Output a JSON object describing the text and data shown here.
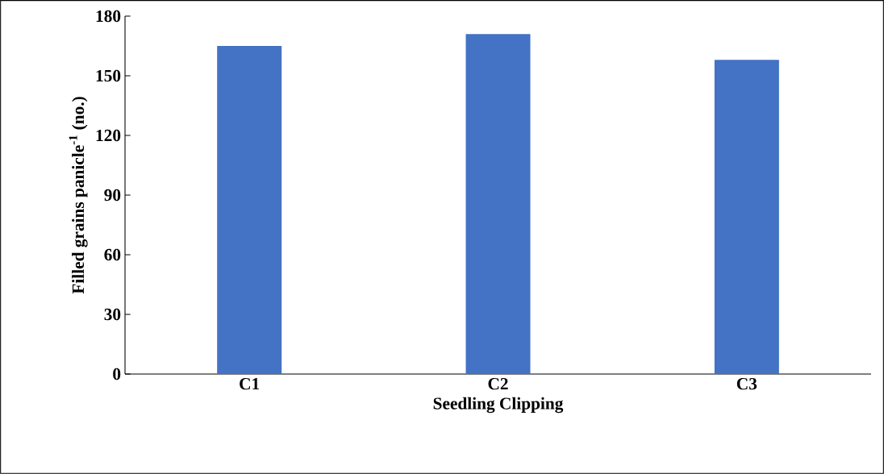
{
  "chart_data": {
    "type": "bar",
    "categories": [
      "C1",
      "C2",
      "C3"
    ],
    "values": [
      165,
      171,
      158
    ],
    "color": "#4472c4",
    "xlabel": "Seedling Clipping",
    "ylabel": "Filled grains panicle$^{-1}$ (no.)",
    "ylim": [
      0,
      180
    ],
    "yticks": [
      0,
      30,
      60,
      90,
      120,
      150,
      180
    ],
    "grid": false
  }
}
